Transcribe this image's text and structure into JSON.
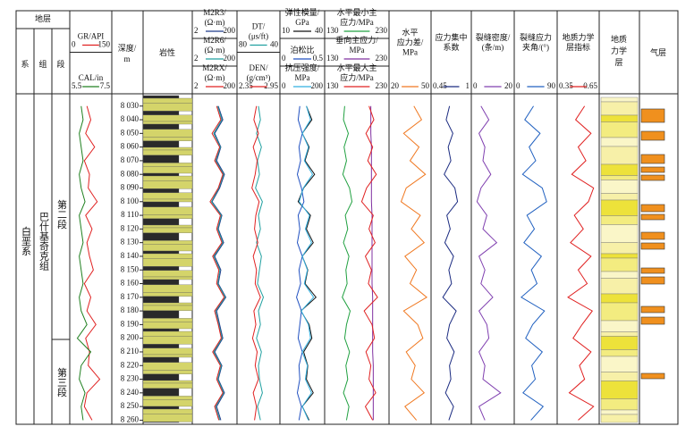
{
  "chart_data": {
    "type": "well_log",
    "strata": {
      "header": "地层",
      "columns": [
        "系",
        "组",
        "段"
      ],
      "system": "白垩系",
      "formation": "巴什基奇克组",
      "members": [
        "第二段",
        "第三段"
      ]
    },
    "depth_label": [
      "深度/",
      "m"
    ],
    "lithology_label": "岩性",
    "geomech_label": [
      "地质",
      "力学",
      "层"
    ],
    "gas_label": "气层",
    "depthlim": [
      8021,
      8263
    ],
    "depth_ticks": [
      {
        "value": 8030,
        "label": "8 030"
      },
      {
        "value": 8040,
        "label": "8 040"
      },
      {
        "value": 8050,
        "label": "8 050"
      },
      {
        "value": 8060,
        "label": "8 060"
      },
      {
        "value": 8070,
        "label": "8 070"
      },
      {
        "value": 8080,
        "label": "8 080"
      },
      {
        "value": 8090,
        "label": "8 090"
      },
      {
        "value": 8100,
        "label": "8 100"
      },
      {
        "value": 8110,
        "label": "8 110"
      },
      {
        "value": 8120,
        "label": "8 120"
      },
      {
        "value": 8130,
        "label": "8 130"
      },
      {
        "value": 8140,
        "label": "8 140"
      },
      {
        "value": 8150,
        "label": "8 150"
      },
      {
        "value": 8160,
        "label": "8 160"
      },
      {
        "value": 8170,
        "label": "8 170"
      },
      {
        "value": 8180,
        "label": "8 180"
      },
      {
        "value": 8190,
        "label": "8 190"
      },
      {
        "value": 8200,
        "label": "8 200"
      },
      {
        "value": 8210,
        "label": "8 210"
      },
      {
        "value": 8220,
        "label": "8 220"
      },
      {
        "value": 8230,
        "label": "8 230"
      },
      {
        "value": 8240,
        "label": "8 240"
      },
      {
        "value": 8250,
        "label": "8 250"
      },
      {
        "value": 8260,
        "label": "8 260"
      }
    ],
    "tracks": [
      {
        "curves": [
          {
            "label": [
              "GR/API"
            ],
            "color": "#e02020",
            "scale": [
              0,
              150
            ],
            "values": [
              60,
              75,
              55,
              90,
              50,
              70,
              65,
              100,
              55,
              80,
              60,
              70,
              85,
              50,
              75,
              60,
              95,
              55,
              70,
              65,
              110,
              60,
              50,
              80
            ]
          },
          {
            "label": [
              "CAL/in"
            ],
            "color": "#208020",
            "scale": [
              5.5,
              7.5
            ],
            "values": [
              6.0,
              6.1,
              5.9,
              6.0,
              6.1,
              5.9,
              6.0,
              6.2,
              5.9,
              6.0,
              6.1,
              5.9,
              6.0,
              6.1,
              5.9,
              6.0,
              6.3,
              5.8,
              6.5,
              6.0,
              5.9,
              6.2,
              6.0,
              6.1
            ]
          }
        ]
      },
      {
        "curves": [
          {
            "label": [
              "M2R3/",
              "(Ω·m)"
            ],
            "color": "#1f3a8a",
            "log": true,
            "scale": [
              2,
              200
            ],
            "values": [
              30,
              50,
              20,
              40,
              25,
              60,
              35,
              15,
              45,
              30,
              55,
              20,
              40,
              30,
              70,
              25,
              35,
              50,
              20,
              45,
              30,
              60,
              25,
              40
            ]
          },
          {
            "label": [
              "M2R6/",
              "(Ω·m)"
            ],
            "color": "#20a0a0",
            "log": true,
            "scale": [
              2,
              200
            ],
            "values": [
              28,
              45,
              18,
              38,
              22,
              55,
              32,
              14,
              42,
              28,
              50,
              18,
              36,
              28,
              65,
              22,
              32,
              46,
              18,
              42,
              28,
              55,
              22,
              36
            ]
          },
          {
            "label": [
              "M2RX/",
              "(Ω·m)"
            ],
            "color": "#e02020",
            "log": true,
            "scale": [
              2,
              200
            ],
            "values": [
              25,
              40,
              15,
              35,
              20,
              50,
              30,
              12,
              38,
              25,
              45,
              16,
              32,
              25,
              58,
              20,
              30,
              42,
              16,
              38,
              25,
              50,
              20,
              32
            ]
          }
        ]
      },
      {
        "curves": [
          {
            "label": [
              "DT/",
              "(μs/ft)"
            ],
            "color": "#20a0a0",
            "scale": [
              80,
              40
            ],
            "values": [
              60,
              58,
              62,
              57,
              61,
              59,
              63,
              56,
              60,
              58,
              62,
              57,
              59,
              61,
              55,
              60,
              58,
              62,
              57,
              60,
              59,
              56,
              61,
              58
            ]
          },
          {
            "label": [
              "DEN/",
              "(g/cm³)"
            ],
            "color": "#e02020",
            "scale": [
              2.35,
              2.95
            ],
            "values": [
              2.62,
              2.58,
              2.65,
              2.57,
              2.63,
              2.6,
              2.55,
              2.66,
              2.61,
              2.59,
              2.64,
              2.57,
              2.62,
              2.6,
              2.68,
              2.58,
              2.61,
              2.56,
              2.63,
              2.6,
              2.65,
              2.57,
              2.62,
              2.59
            ]
          }
        ]
      },
      {
        "curves": [
          {
            "label": [
              "弹性模量/",
              "GPa"
            ],
            "color": "#111111",
            "scale": [
              10,
              40
            ],
            "values": [
              28,
              32,
              25,
              30,
              27,
              34,
              26,
              22,
              31,
              28,
              33,
              25,
              29,
              27,
              35,
              24,
              30,
              32,
              26,
              29,
              28,
              33,
              25,
              30
            ]
          },
          {
            "label": [
              "泊松比"
            ],
            "color": "#2050c0",
            "scale": [
              0,
              0.5
            ],
            "values": [
              0.22,
              0.2,
              0.25,
              0.21,
              0.23,
              0.19,
              0.24,
              0.27,
              0.2,
              0.22,
              0.19,
              0.25,
              0.21,
              0.23,
              0.18,
              0.24,
              0.22,
              0.2,
              0.25,
              0.21,
              0.22,
              0.19,
              0.24,
              0.21
            ]
          },
          {
            "label": [
              "抗压强度/",
              "MPa"
            ],
            "color": "#30b0e0",
            "scale": [
              0,
              200
            ],
            "values": [
              120,
              140,
              100,
              130,
              110,
              150,
              105,
              85,
              135,
              115,
              145,
              100,
              125,
              110,
              155,
              95,
              130,
              140,
              100,
              125,
              115,
              145,
              100,
              130
            ]
          }
        ]
      },
      {
        "curves": [
          {
            "label": [
              "水平最小主",
              "应力/MPa"
            ],
            "color": "#20a040",
            "scale": [
              130,
              230
            ],
            "values": [
              160,
              158,
              166,
              159,
              163,
              157,
              168,
              172,
              161,
              165,
              158,
              167,
              162,
              164,
              156,
              169,
              163,
              160,
              168,
              162,
              165,
              158,
              167,
              163
            ]
          },
          {
            "label": [
              "垂向主应力/",
              "MPa"
            ],
            "color": "#8030a0",
            "scale": [
              130,
              230
            ],
            "values": [
              203,
              203,
              203,
              204,
              204,
              204,
              204,
              204,
              205,
              205,
              205,
              205,
              205,
              205,
              206,
              206,
              206,
              206,
              206,
              207,
              207,
              207,
              207,
              207
            ]
          },
          {
            "label": [
              "水平最大主",
              "应力/MPa"
            ],
            "color": "#e02020",
            "scale": [
              130,
              230
            ],
            "values": [
              200,
              208,
              195,
              206,
              198,
              212,
              196,
              188,
              207,
              200,
              210,
              194,
              204,
              199,
              214,
              192,
              205,
              209,
              195,
              203,
              200,
              211,
              194,
              206
            ]
          }
        ]
      },
      {
        "curves": [
          {
            "label": [
              "水平",
              "应力差/",
              "MPa"
            ],
            "color": "#f07820",
            "scale": [
              20,
              50
            ],
            "values": [
              38,
              44,
              30,
              42,
              35,
              47,
              32,
              28,
              43,
              36,
              46,
              31,
              40,
              35,
              48,
              30,
              41,
              45,
              32,
              39,
              36,
              46,
              31,
              40
            ]
          }
        ]
      },
      {
        "curves": [
          {
            "label": [
              "应力集中",
              "系数"
            ],
            "color": "#1a2a80",
            "scale": [
              0.45,
              1
            ],
            "values": [
              0.7,
              0.65,
              0.75,
              0.68,
              0.72,
              0.62,
              0.78,
              0.82,
              0.66,
              0.71,
              0.63,
              0.76,
              0.69,
              0.73,
              0.6,
              0.8,
              0.7,
              0.66,
              0.77,
              0.7,
              0.72,
              0.64,
              0.76,
              0.69
            ]
          }
        ]
      },
      {
        "curves": [
          {
            "label": [
              "裂缝密度/",
              "(条/m)"
            ],
            "color": "#8040b0",
            "scale": [
              0,
              20
            ],
            "values": [
              4,
              8,
              3,
              6,
              5,
              9,
              4,
              2,
              7,
              5,
              12,
              3,
              6,
              4,
              10,
              3,
              7,
              8,
              3,
              6,
              5,
              14,
              3,
              6
            ]
          }
        ]
      },
      {
        "curves": [
          {
            "label": [
              "裂缝应力",
              "夹角/(°)"
            ],
            "color": "#2060c0",
            "scale": [
              0,
              90
            ],
            "values": [
              40,
              20,
              55,
              30,
              45,
              15,
              60,
              70,
              25,
              42,
              18,
              58,
              35,
              48,
              12,
              65,
              38,
              22,
              60,
              36,
              44,
              16,
              62,
              34
            ]
          }
        ]
      },
      {
        "curves": [
          {
            "label": [
              "地质力学",
              "层指标"
            ],
            "color": "#e02020",
            "scale": [
              0.35,
              0.65
            ],
            "values": [
              0.55,
              0.48,
              0.6,
              0.5,
              0.56,
              0.45,
              0.62,
              0.58,
              0.47,
              0.54,
              0.44,
              0.6,
              0.5,
              0.57,
              0.42,
              0.61,
              0.53,
              0.46,
              0.6,
              0.51,
              0.55,
              0.43,
              0.62,
              0.5
            ]
          }
        ]
      }
    ]
  }
}
